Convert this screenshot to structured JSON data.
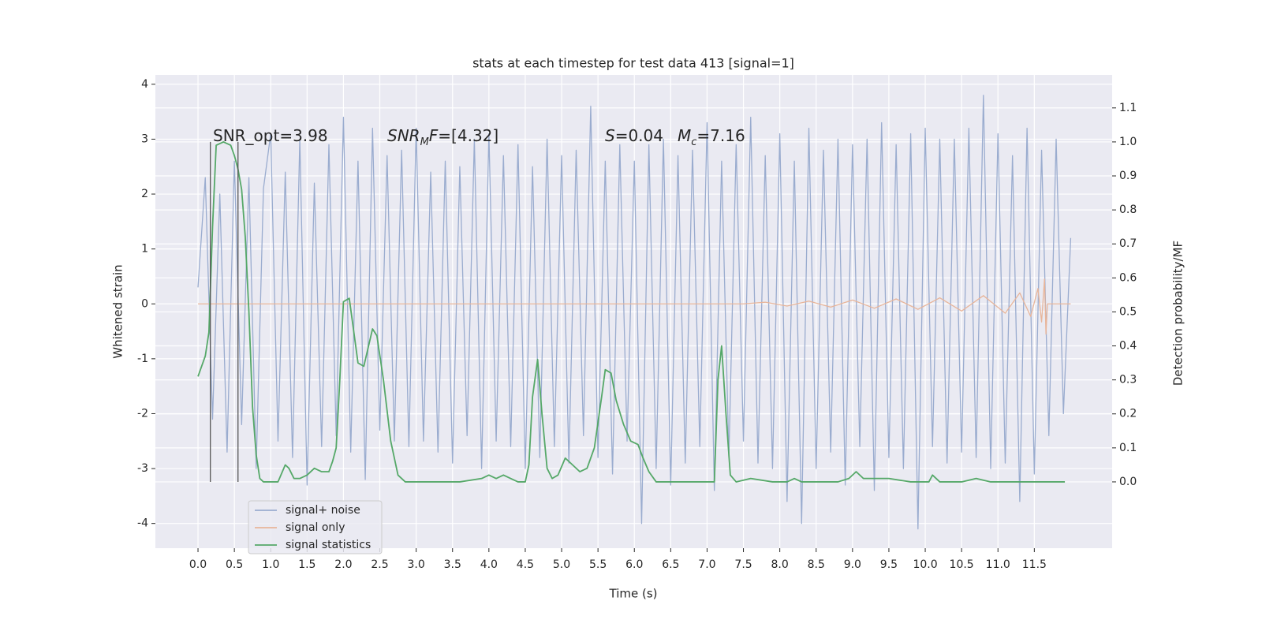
{
  "chart_data": {
    "type": "line",
    "title": "stats at each timestep for test data 413 [signal=1]",
    "xlabel": "Time (s)",
    "ylabel": "Whitened strain",
    "y2label": "Detection probability/MF",
    "xlim": [
      -0.586,
      12.57
    ],
    "ylim": [
      -4.45,
      4.17
    ],
    "y2lim": [
      -0.195,
      1.197
    ],
    "xticks": [
      {
        "value": 0,
        "label": "0.0"
      },
      0.5,
      {
        "value": 1,
        "label": "1.0"
      },
      1.5,
      {
        "value": 2,
        "label": "2.0"
      },
      2.5,
      {
        "value": 3,
        "label": "3.0"
      },
      3.5,
      {
        "value": 4,
        "label": "4.0"
      },
      4.5,
      {
        "value": 5,
        "label": "5.0"
      },
      5.5,
      {
        "value": 6,
        "label": "6.0"
      },
      6.5,
      {
        "value": 7,
        "label": "7.0"
      },
      7.5,
      {
        "value": 8,
        "label": "8.0"
      },
      8.5,
      {
        "value": 9,
        "label": "9.0"
      },
      9.5,
      {
        "value": 10,
        "label": "10.0"
      },
      10.5,
      {
        "value": 11,
        "label": "11.0"
      },
      11.5
    ],
    "yticks": [
      -4,
      -3,
      -2,
      -1,
      0,
      1,
      2,
      3,
      4
    ],
    "y2ticks": [
      {
        "value": 0,
        "label": "0.0"
      },
      0.1,
      0.2,
      0.3,
      0.4,
      0.5,
      0.6,
      0.7,
      0.8,
      0.9,
      {
        "value": 1,
        "label": "1.0"
      },
      1.1
    ],
    "grid": true,
    "legend": "lower left",
    "series": [
      {
        "name": "signal+ noise",
        "color": "#9aaccf",
        "x": [
          0,
          0.1,
          0.2,
          0.3,
          0.4,
          0.5,
          0.6,
          0.7,
          0.8,
          0.9,
          1,
          1.1,
          1.2,
          1.3,
          1.4,
          1.5,
          1.6,
          1.7,
          1.8,
          1.9,
          2,
          2.1,
          2.2,
          2.3,
          2.4,
          2.5,
          2.6,
          2.7,
          2.8,
          2.9,
          3,
          3.1,
          3.2,
          3.3,
          3.4,
          3.5,
          3.6,
          3.7,
          3.8,
          3.9,
          4,
          4.1,
          4.2,
          4.3,
          4.4,
          4.5,
          4.6,
          4.7,
          4.8,
          4.9,
          5,
          5.1,
          5.2,
          5.3,
          5.4,
          5.5,
          5.6,
          5.7,
          5.8,
          5.9,
          6,
          6.1,
          6.2,
          6.3,
          6.4,
          6.5,
          6.6,
          6.7,
          6.8,
          6.9,
          7,
          7.1,
          7.2,
          7.3,
          7.4,
          7.5,
          7.6,
          7.7,
          7.8,
          7.9,
          8,
          8.1,
          8.2,
          8.3,
          8.4,
          8.5,
          8.6,
          8.7,
          8.8,
          8.9,
          9,
          9.1,
          9.2,
          9.3,
          9.4,
          9.5,
          9.6,
          9.7,
          9.8,
          9.9,
          10,
          10.1,
          10.2,
          10.3,
          10.4,
          10.5,
          10.6,
          10.7,
          10.8,
          10.9,
          11,
          11.1,
          11.2,
          11.3,
          11.4,
          11.5,
          11.6,
          11.7,
          11.8,
          11.9,
          12
        ],
        "values": [
          0.3,
          2.3,
          -2.1,
          2.0,
          -2.7,
          2.6,
          -2.2,
          2.3,
          -3.0,
          2.1,
          3.1,
          -2.5,
          2.4,
          -2.8,
          3.0,
          -3.3,
          2.2,
          -2.6,
          2.9,
          -2.4,
          3.4,
          -2.7,
          2.6,
          -3.2,
          3.2,
          -2.3,
          2.7,
          -2.5,
          2.8,
          -2.6,
          3.2,
          -2.5,
          2.4,
          -2.7,
          2.6,
          -2.9,
          2.5,
          -2.4,
          3.0,
          -3.0,
          3.1,
          -2.5,
          2.7,
          -2.6,
          2.9,
          -3.0,
          2.5,
          -2.8,
          3.0,
          -2.6,
          2.7,
          -2.9,
          2.8,
          -2.4,
          3.6,
          -2.8,
          2.6,
          -3.1,
          2.9,
          -2.5,
          2.6,
          -4.0,
          2.9,
          -3.0,
          3.0,
          -3.3,
          2.7,
          -2.9,
          2.8,
          -2.6,
          3.3,
          -3.4,
          2.6,
          -2.8,
          2.9,
          -2.5,
          3.4,
          -2.9,
          2.7,
          -3.0,
          3.1,
          -3.6,
          2.6,
          -4.0,
          3.2,
          -3.0,
          2.8,
          -2.7,
          3.0,
          -3.3,
          2.9,
          -2.6,
          3.0,
          -3.4,
          3.3,
          -2.8,
          2.9,
          -3.0,
          3.1,
          -4.1,
          3.2,
          -2.6,
          3.0,
          -2.9,
          3.0,
          -2.7,
          3.2,
          -2.8,
          3.8,
          -3.0,
          3.1,
          -2.9,
          2.7,
          -3.6,
          3.2,
          -3.1,
          2.8,
          -2.4,
          3.0,
          -2.0,
          1.2
        ]
      },
      {
        "name": "signal only",
        "color": "#e8b59a",
        "x": [
          0,
          7.5,
          7.8,
          8.1,
          8.4,
          8.7,
          9.0,
          9.3,
          9.6,
          9.9,
          10.2,
          10.5,
          10.8,
          11.1,
          11.3,
          11.45,
          11.55,
          11.6,
          11.64,
          11.66,
          11.68,
          12
        ],
        "values": [
          0,
          0,
          0.03,
          -0.04,
          0.05,
          -0.06,
          0.07,
          -0.08,
          0.09,
          -0.1,
          0.11,
          -0.13,
          0.15,
          -0.17,
          0.2,
          -0.23,
          0.28,
          -0.33,
          0.45,
          -0.55,
          0,
          0
        ]
      },
      {
        "name": "signal statistics",
        "color": "#55a868",
        "axis": "y2",
        "x": [
          0,
          0.1,
          0.15,
          0.2,
          0.25,
          0.3,
          0.35,
          0.4,
          0.45,
          0.5,
          0.55,
          0.6,
          0.65,
          0.7,
          0.75,
          0.8,
          0.85,
          0.9,
          1.0,
          1.1,
          1.2,
          1.25,
          1.32,
          1.4,
          1.5,
          1.6,
          1.7,
          1.8,
          1.85,
          1.9,
          1.95,
          2.0,
          2.08,
          2.2,
          2.28,
          2.4,
          2.46,
          2.55,
          2.65,
          2.75,
          2.85,
          3.2,
          3.6,
          3.9,
          4.0,
          4.1,
          4.2,
          4.3,
          4.4,
          4.5,
          4.55,
          4.6,
          4.67,
          4.73,
          4.8,
          4.87,
          4.95,
          5.05,
          5.15,
          5.25,
          5.35,
          5.45,
          5.55,
          5.6,
          5.68,
          5.75,
          5.85,
          5.95,
          6.05,
          6.12,
          6.2,
          6.3,
          6.5,
          6.8,
          7.0,
          7.1,
          7.15,
          7.2,
          7.26,
          7.32,
          7.4,
          7.6,
          7.9,
          8.1,
          8.2,
          8.3,
          8.8,
          8.95,
          9.05,
          9.15,
          9.5,
          9.8,
          10.05,
          10.1,
          10.2,
          10.5,
          10.7,
          10.9,
          11.92
        ],
        "values": [
          0.31,
          0.37,
          0.44,
          0.75,
          0.99,
          0.995,
          1.0,
          0.995,
          0.99,
          0.96,
          0.92,
          0.86,
          0.72,
          0.5,
          0.22,
          0.08,
          0.01,
          0.0,
          0.0,
          0.0,
          0.05,
          0.04,
          0.01,
          0.01,
          0.02,
          0.04,
          0.03,
          0.03,
          0.06,
          0.1,
          0.3,
          0.53,
          0.54,
          0.35,
          0.34,
          0.45,
          0.43,
          0.3,
          0.12,
          0.02,
          0.0,
          0.0,
          0.0,
          0.01,
          0.02,
          0.01,
          0.02,
          0.01,
          0.0,
          0.0,
          0.05,
          0.25,
          0.36,
          0.2,
          0.04,
          0.01,
          0.02,
          0.07,
          0.05,
          0.03,
          0.04,
          0.1,
          0.25,
          0.33,
          0.32,
          0.24,
          0.17,
          0.12,
          0.11,
          0.07,
          0.03,
          0.0,
          0.0,
          0.0,
          0.0,
          0.0,
          0.3,
          0.4,
          0.2,
          0.02,
          0.0,
          0.01,
          0.0,
          0.0,
          0.01,
          0.0,
          0.0,
          0.01,
          0.03,
          0.01,
          0.01,
          0.0,
          0.0,
          0.02,
          0.0,
          0.0,
          0.01,
          0.0,
          0.0
        ]
      }
    ],
    "vlines": {
      "x": [
        0.17,
        0.55
      ],
      "ymin": 0,
      "ymax": 1,
      "axis": "y2",
      "color": "#555555"
    },
    "annotations": [
      {
        "parts": [
          {
            "text": "SNR_opt=3.98"
          }
        ]
      },
      {
        "parts": [
          {
            "text": "SNR",
            "italic": true
          },
          {
            "text": "M",
            "italic": true,
            "sub": true
          },
          {
            "text": "F",
            "italic": true
          },
          {
            "text": "=[4.32]"
          }
        ]
      },
      {
        "parts": [
          {
            "text": "S",
            "italic": true
          },
          {
            "text": "=0.04"
          }
        ]
      },
      {
        "parts": [
          {
            "text": "M",
            "italic": true
          },
          {
            "text": "c",
            "italic": true,
            "sub": true
          },
          {
            "text": "=7.16"
          }
        ]
      }
    ]
  }
}
